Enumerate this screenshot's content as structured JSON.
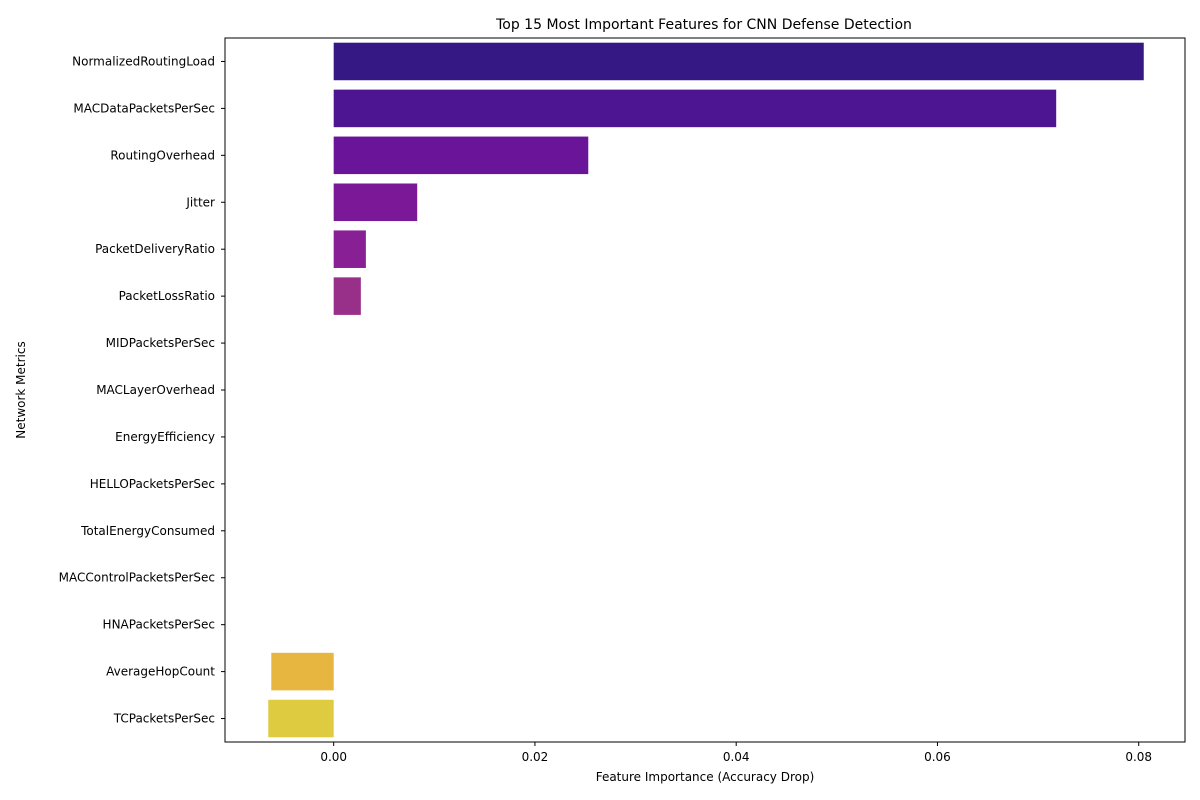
{
  "chart_data": {
    "type": "bar",
    "orientation": "horizontal",
    "title": "Top 15 Most Important Features for CNN Defense Detection",
    "xlabel": "Feature Importance (Accuracy Drop)",
    "ylabel": "Network Metrics",
    "xlim": [
      -0.0108,
      0.0846
    ],
    "x_ticks": [
      0.0,
      0.02,
      0.04,
      0.06,
      0.08
    ],
    "x_tick_labels": [
      "0.00",
      "0.02",
      "0.04",
      "0.06",
      "0.08"
    ],
    "grid": false,
    "categories": [
      "NormalizedRoutingLoad",
      "MACDataPacketsPerSec",
      "RoutingOverhead",
      "Jitter",
      "PacketDeliveryRatio",
      "PacketLossRatio",
      "MIDPacketsPerSec",
      "MACLayerOverhead",
      "EnergyEfficiency",
      "HELLOPacketsPerSec",
      "TotalEnergyConsumed",
      "MACControlPacketsPerSec",
      "HNAPacketsPerSec",
      "AverageHopCount",
      "TCPacketsPerSec"
    ],
    "values": [
      0.0805,
      0.0718,
      0.0253,
      0.0083,
      0.0032,
      0.0027,
      0,
      0,
      0,
      0,
      0,
      0,
      0,
      -0.0062,
      -0.0065
    ],
    "colors": [
      "#351883",
      "#4d1591",
      "#6a1499",
      "#7b1898",
      "#891f94",
      "#98308a",
      "#a8417e",
      "#b75272",
      "#c56467",
      "#d2765c",
      "#dc8850",
      "#e39a45",
      "#e8ab3e",
      "#e6b640",
      "#dfcb3f"
    ]
  }
}
